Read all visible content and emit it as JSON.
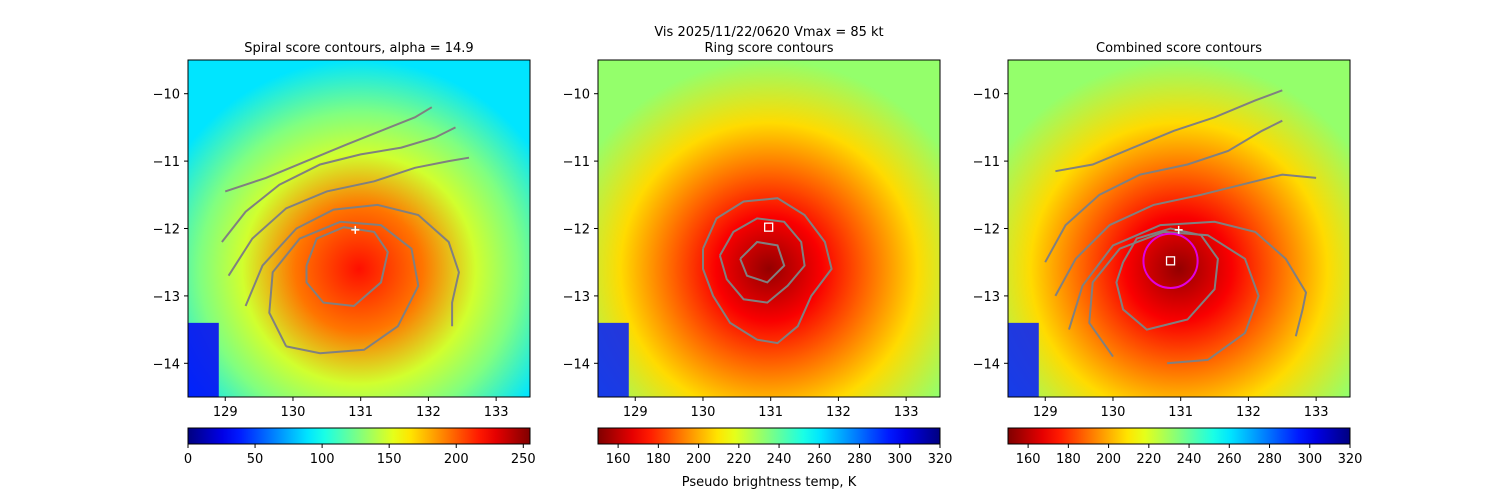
{
  "suptitle": "Vis  2025/11/22/0620    Vmax = 85 kt",
  "colorbar_label": "Pseudo brightness temp, K",
  "colors": {
    "contour": "#808080",
    "marker": "#ffffff",
    "circle": "#e000e0",
    "circle_inner": "#4040ff"
  },
  "chart_data": [
    {
      "type": "heatmap",
      "title": "Spiral score contours, alpha = 14.9",
      "xlim": [
        128.45,
        133.5
      ],
      "ylim": [
        -14.5,
        -9.5
      ],
      "x_ticks": [
        129,
        130,
        131,
        132,
        133
      ],
      "y_ticks": [
        -10,
        -11,
        -12,
        -13,
        -14
      ],
      "x_tick_labels": [
        "129",
        "130",
        "131",
        "132",
        "133"
      ],
      "y_tick_labels": [
        "−10",
        "−11",
        "−12",
        "−13",
        "−14"
      ],
      "colorscale": "jet",
      "colorbar": {
        "range": [
          0,
          255
        ],
        "reversed": false,
        "ticks": [
          0,
          50,
          100,
          150,
          200,
          250
        ],
        "tick_labels": [
          "0",
          "50",
          "100",
          "150",
          "200",
          "250"
        ]
      },
      "center_marker": {
        "symbol": "plus",
        "lon": 130.92,
        "lat": -12.02
      },
      "contours": [
        [
          [
            129.0,
            -11.45
          ],
          [
            129.6,
            -11.25
          ],
          [
            130.2,
            -11.0
          ],
          [
            130.8,
            -10.75
          ],
          [
            131.3,
            -10.55
          ],
          [
            131.8,
            -10.35
          ],
          [
            132.05,
            -10.2
          ]
        ],
        [
          [
            128.95,
            -12.2
          ],
          [
            129.3,
            -11.75
          ],
          [
            129.8,
            -11.35
          ],
          [
            130.4,
            -11.05
          ],
          [
            131.0,
            -10.9
          ],
          [
            131.6,
            -10.8
          ],
          [
            132.1,
            -10.65
          ],
          [
            132.4,
            -10.5
          ]
        ],
        [
          [
            129.05,
            -12.7
          ],
          [
            129.4,
            -12.15
          ],
          [
            129.9,
            -11.7
          ],
          [
            130.5,
            -11.45
          ],
          [
            131.2,
            -11.3
          ],
          [
            131.8,
            -11.1
          ],
          [
            132.3,
            -11.0
          ],
          [
            132.6,
            -10.95
          ]
        ],
        [
          [
            129.3,
            -13.15
          ],
          [
            129.55,
            -12.55
          ],
          [
            130.05,
            -12.0
          ],
          [
            130.6,
            -11.72
          ],
          [
            131.25,
            -11.65
          ],
          [
            131.85,
            -11.8
          ],
          [
            132.3,
            -12.2
          ],
          [
            132.45,
            -12.65
          ],
          [
            132.35,
            -13.1
          ],
          [
            132.35,
            -13.45
          ]
        ],
        [
          [
            129.9,
            -13.75
          ],
          [
            129.65,
            -13.25
          ],
          [
            129.7,
            -12.65
          ],
          [
            130.1,
            -12.15
          ],
          [
            130.7,
            -11.9
          ],
          [
            131.3,
            -11.95
          ],
          [
            131.75,
            -12.3
          ],
          [
            131.85,
            -12.85
          ],
          [
            131.55,
            -13.45
          ],
          [
            131.05,
            -13.8
          ],
          [
            130.4,
            -13.85
          ],
          [
            129.9,
            -13.75
          ]
        ],
        [
          [
            130.2,
            -12.55
          ],
          [
            130.35,
            -12.15
          ],
          [
            130.75,
            -11.98
          ],
          [
            131.2,
            -12.05
          ],
          [
            131.4,
            -12.35
          ],
          [
            131.3,
            -12.8
          ],
          [
            130.9,
            -13.15
          ],
          [
            130.45,
            -13.1
          ],
          [
            130.2,
            -12.8
          ],
          [
            130.2,
            -12.55
          ]
        ]
      ]
    },
    {
      "type": "heatmap",
      "title": "Ring score contours",
      "xlim": [
        128.45,
        133.5
      ],
      "ylim": [
        -14.5,
        -9.5
      ],
      "x_ticks": [
        129,
        130,
        131,
        132,
        133
      ],
      "y_ticks": [
        -10,
        -11,
        -12,
        -13,
        -14
      ],
      "x_tick_labels": [
        "129",
        "130",
        "131",
        "132",
        "133"
      ],
      "y_tick_labels": [
        "−10",
        "−11",
        "−12",
        "−13",
        "−14"
      ],
      "colorscale": "jet_r",
      "colorbar": {
        "range": [
          150,
          320
        ],
        "reversed": true,
        "ticks": [
          160,
          180,
          200,
          220,
          240,
          260,
          280,
          300,
          320
        ],
        "tick_labels": [
          "160",
          "180",
          "200",
          "220",
          "240",
          "260",
          "280",
          "300",
          "320"
        ]
      },
      "center_marker": {
        "symbol": "square",
        "lon": 130.97,
        "lat": -11.98
      },
      "contours": [
        [
          [
            130.0,
            -12.3
          ],
          [
            130.2,
            -11.85
          ],
          [
            130.6,
            -11.6
          ],
          [
            131.1,
            -11.55
          ],
          [
            131.5,
            -11.8
          ],
          [
            131.8,
            -12.2
          ],
          [
            131.9,
            -12.6
          ],
          [
            131.6,
            -13.0
          ],
          [
            131.4,
            -13.45
          ],
          [
            131.1,
            -13.7
          ],
          [
            130.8,
            -13.65
          ],
          [
            130.4,
            -13.4
          ],
          [
            130.15,
            -13.0
          ],
          [
            130.0,
            -12.6
          ],
          [
            130.0,
            -12.3
          ]
        ],
        [
          [
            130.25,
            -12.4
          ],
          [
            130.45,
            -12.05
          ],
          [
            130.8,
            -11.85
          ],
          [
            131.2,
            -11.9
          ],
          [
            131.45,
            -12.2
          ],
          [
            131.5,
            -12.55
          ],
          [
            131.25,
            -12.85
          ],
          [
            130.95,
            -13.1
          ],
          [
            130.6,
            -13.05
          ],
          [
            130.35,
            -12.75
          ],
          [
            130.25,
            -12.4
          ]
        ],
        [
          [
            130.55,
            -12.45
          ],
          [
            130.8,
            -12.2
          ],
          [
            131.1,
            -12.25
          ],
          [
            131.2,
            -12.55
          ],
          [
            130.95,
            -12.8
          ],
          [
            130.65,
            -12.7
          ],
          [
            130.55,
            -12.45
          ]
        ]
      ]
    },
    {
      "type": "heatmap",
      "title": "Combined score contours",
      "xlim": [
        128.45,
        133.5
      ],
      "ylim": [
        -14.5,
        -9.5
      ],
      "x_ticks": [
        129,
        130,
        131,
        132,
        133
      ],
      "y_ticks": [
        -10,
        -11,
        -12,
        -13,
        -14
      ],
      "x_tick_labels": [
        "129",
        "130",
        "131",
        "132",
        "133"
      ],
      "y_tick_labels": [
        "−10",
        "−11",
        "−12",
        "−13",
        "−14"
      ],
      "colorscale": "jet_r",
      "colorbar": {
        "range": [
          150,
          320
        ],
        "reversed": true,
        "ticks": [
          160,
          180,
          200,
          220,
          240,
          260,
          280,
          300,
          320
        ],
        "tick_labels": [
          "160",
          "180",
          "200",
          "220",
          "240",
          "260",
          "280",
          "300",
          "320"
        ]
      },
      "center_marker": {
        "symbol": "plus",
        "lon": 130.97,
        "lat": -12.02
      },
      "square_marker": {
        "lon": 130.85,
        "lat": -12.48
      },
      "ring": {
        "lon": 130.85,
        "lat": -12.48,
        "radius_deg": 0.4
      },
      "contours": [
        [
          [
            129.15,
            -11.15
          ],
          [
            129.7,
            -11.05
          ],
          [
            130.3,
            -10.8
          ],
          [
            130.9,
            -10.55
          ],
          [
            131.5,
            -10.35
          ],
          [
            132.1,
            -10.1
          ],
          [
            132.5,
            -9.95
          ]
        ],
        [
          [
            129.0,
            -12.5
          ],
          [
            129.3,
            -11.95
          ],
          [
            129.8,
            -11.5
          ],
          [
            130.4,
            -11.2
          ],
          [
            131.1,
            -11.05
          ],
          [
            131.7,
            -10.85
          ],
          [
            132.2,
            -10.55
          ],
          [
            132.5,
            -10.4
          ]
        ],
        [
          [
            129.15,
            -13.0
          ],
          [
            129.45,
            -12.45
          ],
          [
            129.95,
            -11.95
          ],
          [
            130.6,
            -11.65
          ],
          [
            131.3,
            -11.5
          ],
          [
            131.9,
            -11.35
          ],
          [
            132.5,
            -11.2
          ],
          [
            133.0,
            -11.25
          ]
        ],
        [
          [
            129.35,
            -13.5
          ],
          [
            129.55,
            -12.85
          ],
          [
            130.0,
            -12.25
          ],
          [
            130.7,
            -11.95
          ],
          [
            131.5,
            -11.9
          ],
          [
            132.1,
            -12.05
          ],
          [
            132.55,
            -12.45
          ],
          [
            132.85,
            -12.95
          ],
          [
            132.8,
            -13.2
          ],
          [
            132.7,
            -13.6
          ]
        ],
        [
          [
            130.0,
            -13.9
          ],
          [
            129.65,
            -13.4
          ],
          [
            129.7,
            -12.8
          ],
          [
            130.1,
            -12.3
          ],
          [
            130.75,
            -12.05
          ],
          [
            131.4,
            -12.1
          ],
          [
            131.95,
            -12.45
          ],
          [
            132.15,
            -13.0
          ],
          [
            131.95,
            -13.55
          ],
          [
            131.4,
            -13.95
          ],
          [
            130.8,
            -14.0
          ]
        ],
        [
          [
            130.15,
            -12.5
          ],
          [
            130.35,
            -12.15
          ],
          [
            130.85,
            -12.0
          ],
          [
            131.3,
            -12.1
          ],
          [
            131.55,
            -12.45
          ],
          [
            131.5,
            -12.9
          ],
          [
            131.1,
            -13.35
          ],
          [
            130.5,
            -13.5
          ],
          [
            130.15,
            -13.2
          ],
          [
            130.05,
            -12.8
          ],
          [
            130.15,
            -12.5
          ]
        ]
      ]
    }
  ]
}
